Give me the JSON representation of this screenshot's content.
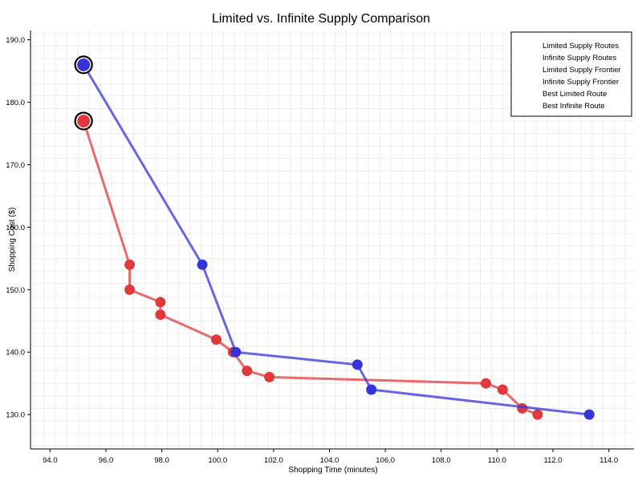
{
  "chart_data": {
    "type": "line",
    "title": "Limited vs. Infinite Supply Comparison",
    "xlabel": "Shopping Time (minutes)",
    "ylabel": "Shopping Cost ($)",
    "xlim": [
      93.3,
      114.9
    ],
    "ylim": [
      124.5,
      191.5
    ],
    "x_ticks": [
      94,
      96,
      98,
      100,
      102,
      104,
      106,
      108,
      110,
      112,
      114
    ],
    "x_tick_labels": [
      "94.0",
      "96.0",
      "98.0",
      "100.0",
      "102.0",
      "104.0",
      "106.0",
      "108.0",
      "110.0",
      "112.0",
      "114.0"
    ],
    "y_ticks": [
      130,
      140,
      150,
      160,
      170,
      180,
      190
    ],
    "y_tick_labels": [
      "130.0",
      "140.0",
      "150.0",
      "160.0",
      "170.0",
      "180.0",
      "190.0"
    ],
    "grid": true,
    "legend_position": "top-right",
    "legend": [
      "Limited Supply Routes",
      "Infinite Supply Routes",
      "Limited Supply Frontier",
      "Infinite Supply Frontier",
      "Best Limited Route",
      "Best Infinite Route"
    ],
    "series": [
      {
        "name": "Limited Supply Frontier",
        "color": "#e0393b",
        "x": [
          95.2,
          96.85,
          96.85,
          97.95,
          97.95,
          99.95,
          100.55,
          101.05,
          101.85,
          109.6,
          110.2,
          110.9,
          111.45
        ],
        "y": [
          177,
          154,
          150,
          148,
          146,
          142,
          140,
          137,
          136,
          135,
          134,
          131,
          130
        ]
      },
      {
        "name": "Infinite Supply Frontier",
        "color": "#3434d8",
        "x": [
          95.2,
          99.45,
          100.65,
          105.0,
          105.5,
          113.3
        ],
        "y": [
          186,
          154,
          140,
          138,
          134,
          130
        ]
      }
    ],
    "best": [
      {
        "name": "Best Limited Route",
        "color": "#e0393b",
        "x": 95.2,
        "y": 177
      },
      {
        "name": "Best Infinite Route",
        "color": "#3434d8",
        "x": 95.2,
        "y": 186
      }
    ]
  }
}
